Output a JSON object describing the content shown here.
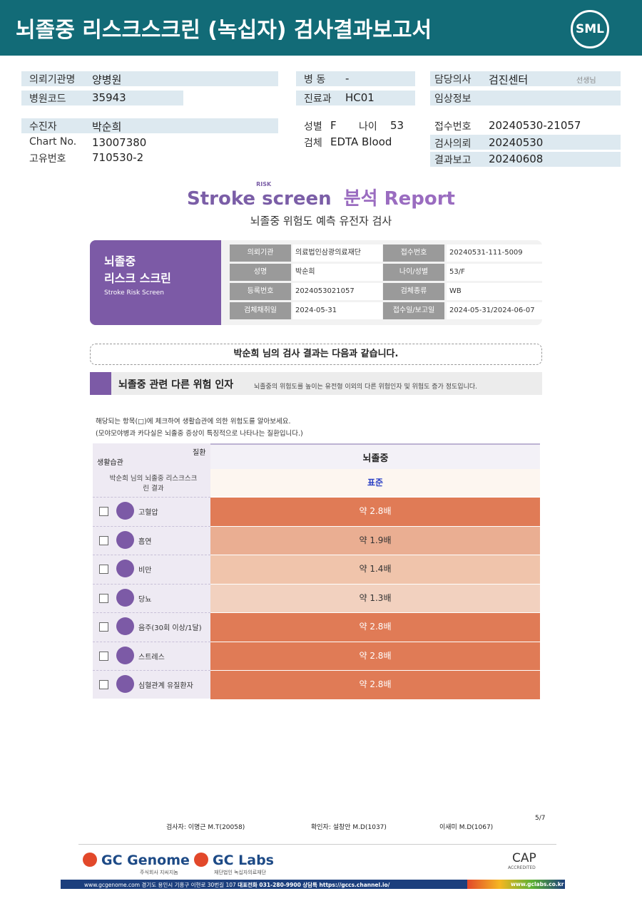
{
  "header": {
    "title": "뇌졸중 리스크스크린 (녹십자) 검사결과보고서",
    "logo": "SML"
  },
  "info": {
    "left": [
      {
        "label": "의뢰기관명",
        "value": "양병원"
      },
      {
        "label": "병원코드",
        "value": "35943"
      },
      {
        "label": "수진자",
        "value": "박순희"
      },
      {
        "label": "Chart No.",
        "value": "13007380"
      },
      {
        "label": "고유번호",
        "value": "710530-2"
      }
    ],
    "middle": [
      {
        "label": "병 동",
        "value": "-"
      },
      {
        "label": "진료과",
        "value": "HC01"
      },
      {
        "label": "성별",
        "value": "F"
      },
      {
        "label": "나이",
        "value": "53"
      },
      {
        "label": "검체",
        "value": "EDTA Blood"
      }
    ],
    "right": [
      {
        "label": "담당의사",
        "value": "검진센터",
        "suffix": "선생님"
      },
      {
        "label": "임상정보"
      },
      {
        "label": "접수번호",
        "value": "20240530-21057"
      },
      {
        "label": "검사의뢰",
        "value": "20240530"
      },
      {
        "label": "결과보고",
        "value": "20240608"
      }
    ]
  },
  "report": {
    "title_stroke": "Stroke",
    "title_risk": "RISK",
    "title_screen": "screen",
    "title_report": "분석 Report",
    "subtitle": "뇌졸중 위험도 예측 유전자 검사",
    "card": {
      "line1": "뇌졸중",
      "line2": "리스크 스크린",
      "english": "Stroke Risk Screen"
    },
    "table": [
      [
        "의뢰기관",
        "의료법인삼광의료재단",
        "접수번호",
        "20240531-111-5009"
      ],
      [
        "성명",
        "박순희",
        "나이/성별",
        "53/F"
      ],
      [
        "등록번호",
        "2024053021057",
        "검체종류",
        "WB"
      ],
      [
        "검체채취일",
        "2024-05-31",
        "접수일/보고일",
        "2024-05-31/2024-06-07"
      ]
    ],
    "banner": "박순희 님의 검사 결과는 다음과 같습니다."
  },
  "section": {
    "title": "뇌졸중 관련 다른 위험 인자",
    "note": "뇌졸중의 위험도를 높이는 유전형 이외의 다른 위험인자 및 위험도 증가 정도입니다.",
    "instructions": [
      "해당되는 항목(□)에 체크하여 생활습관에 의한 위험도를 알아보세요.",
      "(모야모야병과 카다실은 뇌졸중 증상이 특징적으로 나타나는 질환입니다.)"
    ]
  },
  "risk_table": {
    "header_disease": "질환",
    "header_lifestyle": "생활습관",
    "column": "뇌졸중",
    "result_label": "박순희 님의 뇌졸중 리스크스크린 결과",
    "result_value": "표준",
    "rows": [
      {
        "item": "고혈압",
        "value": "약 2.8배",
        "color": "#e07b56"
      },
      {
        "item": "흡연",
        "value": "약 1.9배",
        "color": "#eaae92"
      },
      {
        "item": "비만",
        "value": "약 1.4배",
        "color": "#f0c4ab"
      },
      {
        "item": "당뇨",
        "value": "약 1.3배",
        "color": "#f2d1bf"
      },
      {
        "item": "음주(30회 이상/1달)",
        "value": "약 2.8배",
        "color": "#e07b56"
      },
      {
        "item": "스트레스",
        "value": "약 2.8배",
        "color": "#e07b56"
      },
      {
        "item": "심혈관계 유질환자",
        "value": "약 2.8배",
        "color": "#e07b56"
      }
    ]
  },
  "footer": {
    "examiner": "검사자: 이명근 M.T(20058)",
    "confirmer": "확인자: 설창안 M.D(1037)",
    "doctor": "이새미 M.D(1067)",
    "page": "5/7",
    "gc_genome": "GC Genome",
    "gc_genome_sub": "주식회사 지씨지놈",
    "gc_labs": "GC Labs",
    "gc_labs_sub": "재단법인 녹십자의료재단",
    "cap": "CAP",
    "cap_sub": "ACCREDITED",
    "bar_left": "www.gcgenome.com 경기도 용인시 기흥구 이현로 30번길 107",
    "bar_phone": "대표전화 031-280-9900",
    "bar_talk": "상담톡 https://gccs.channel.io/",
    "bar_right": "www.gclabs.co.kr"
  }
}
